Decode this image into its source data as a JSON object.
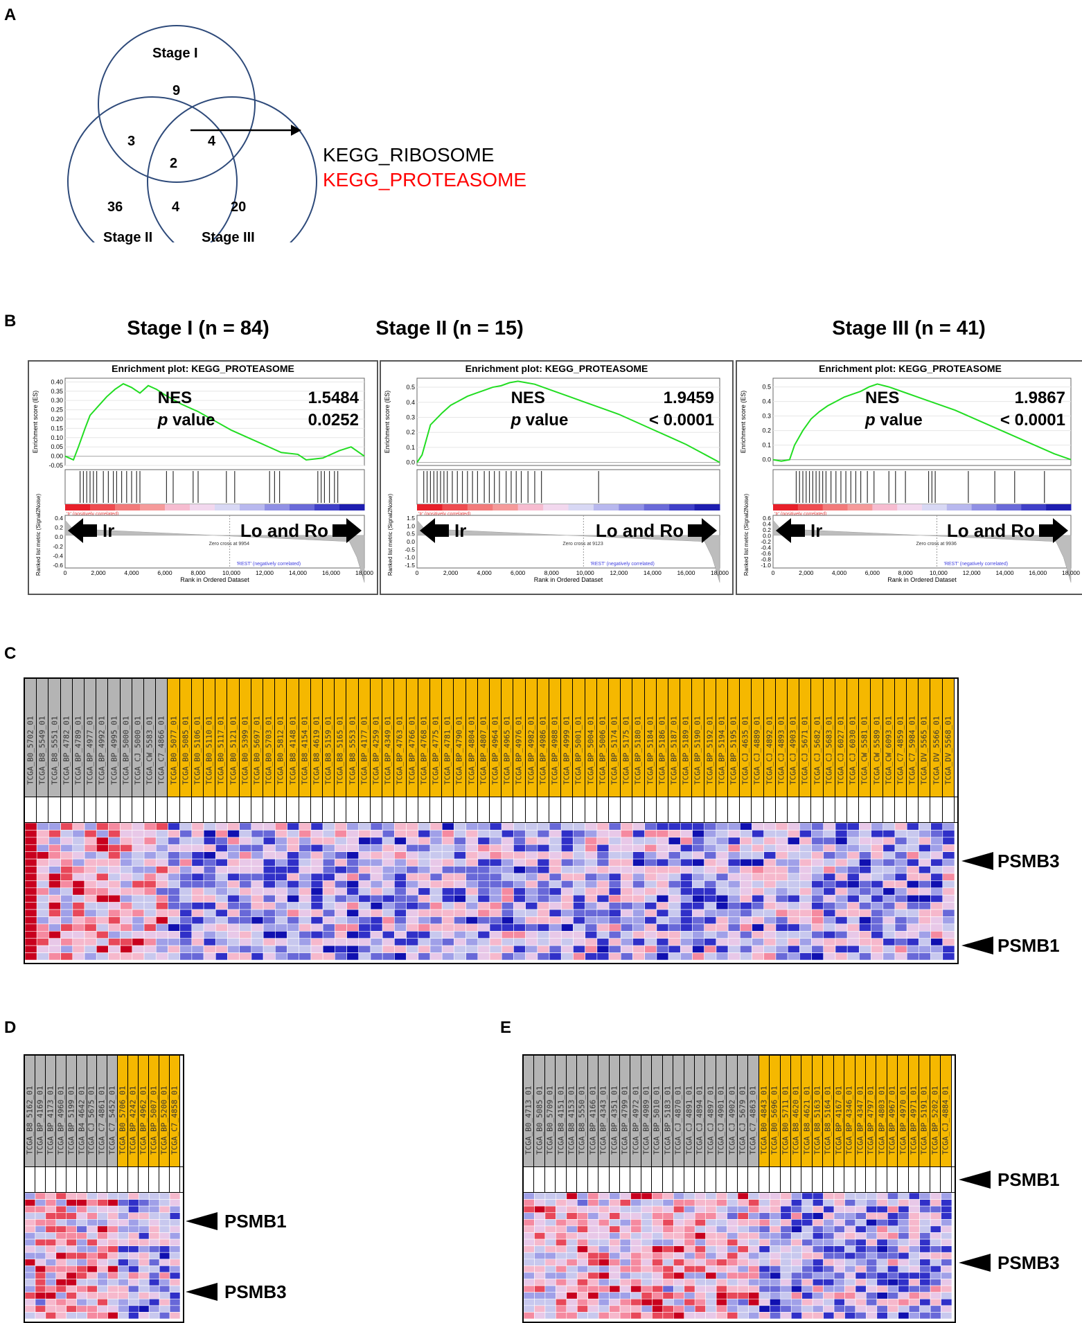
{
  "panels": {
    "A": "A",
    "B": "B",
    "C": "C",
    "D": "D",
    "E": "E"
  },
  "venn": {
    "sets": [
      "Stage I",
      "Stage II",
      "Stage III"
    ],
    "regions": {
      "stage1_only": "9",
      "stage2_only": "36",
      "stage3_only": "20",
      "s1_s2": "3",
      "s1_s3": "4",
      "s2_s3": "4",
      "all": "2"
    },
    "shared_pathways": [
      "KEGG_RIBOSOME",
      "KEGG_PROTEASOME"
    ],
    "colors": {
      "circle": "#2e4a7a",
      "ribosome": "#000000",
      "proteasome": "#ff0000"
    }
  },
  "chart_data": [
    {
      "type": "line",
      "stage_title": "Stage I (n = 84)",
      "title": "Enrichment plot: KEGG_PROTEASOME",
      "nes_label": "NES",
      "nes": "1.5484",
      "p_label_italic": "p",
      "p_label_rest": " value",
      "p": "0.0252",
      "ylabel": "Enrichment score (ES)",
      "ylabel2": "Ranked list metric (Signal2Noise)",
      "xlabel": "Rank in Ordered Dataset",
      "xticks": [
        "0",
        "2,000",
        "4,000",
        "6,000",
        "8,000",
        "10,000",
        "12,000",
        "14,000",
        "16,000",
        "18,000"
      ],
      "yticks": [
        "0.40",
        "0.35",
        "0.30",
        "0.25",
        "0.20",
        "0.15",
        "0.10",
        "0.05",
        "0.00",
        "-0.05"
      ],
      "yticks2": [
        "0.4",
        "0.2",
        "0.0",
        "-0.2",
        "-0.4",
        "-0.6"
      ],
      "ylim": [
        -0.05,
        0.42
      ],
      "xlim": [
        0,
        18000
      ],
      "es_curve": [
        [
          0,
          0.0
        ],
        [
          500,
          -0.02
        ],
        [
          800,
          0.05
        ],
        [
          1200,
          0.15
        ],
        [
          1500,
          0.22
        ],
        [
          2000,
          0.27
        ],
        [
          2500,
          0.32
        ],
        [
          3000,
          0.36
        ],
        [
          3500,
          0.39
        ],
        [
          4000,
          0.37
        ],
        [
          4500,
          0.34
        ],
        [
          5000,
          0.38
        ],
        [
          5500,
          0.36
        ],
        [
          6000,
          0.33
        ],
        [
          7000,
          0.28
        ],
        [
          8000,
          0.24
        ],
        [
          9000,
          0.19
        ],
        [
          10000,
          0.14
        ],
        [
          11000,
          0.1
        ],
        [
          12000,
          0.06
        ],
        [
          13000,
          0.02
        ],
        [
          14000,
          0.01
        ],
        [
          14500,
          -0.02
        ],
        [
          15500,
          -0.01
        ],
        [
          16500,
          0.03
        ],
        [
          17200,
          0.05
        ],
        [
          18000,
          0.0
        ]
      ],
      "hits": [
        900,
        1100,
        1300,
        1500,
        1700,
        1900,
        2300,
        2600,
        2900,
        3100,
        3400,
        3700,
        4000,
        4300,
        4500,
        6100,
        6500,
        7700,
        8000,
        9700,
        10200,
        12300,
        12600,
        12900,
        15200,
        15400,
        15600,
        15900,
        16200,
        16400
      ],
      "zero_cross": "Zero cross at 9954",
      "pos_label": "'Ir' (positively correlated)",
      "neg_label": "'REST' (negatively correlated)",
      "left_group": "Ir",
      "right_group": "Lo and Ro"
    },
    {
      "type": "line",
      "stage_title": "Stage II (n = 15)",
      "title": "Enrichment plot: KEGG_PROTEASOME",
      "nes_label": "NES",
      "nes": "1.9459",
      "p_label_italic": "p",
      "p_label_rest": " value",
      "p": "< 0.0001",
      "ylabel": "Enrichment score (ES)",
      "ylabel2": "Ranked list metric (Signal2Noise)",
      "xlabel": "Rank in Ordered Dataset",
      "xticks": [
        "0",
        "2,000",
        "4,000",
        "6,000",
        "8,000",
        "10,000",
        "12,000",
        "14,000",
        "16,000",
        "18,000"
      ],
      "yticks": [
        "0.5",
        "0.4",
        "0.3",
        "0.2",
        "0.1",
        "0.0"
      ],
      "yticks2": [
        "1.5",
        "1.0",
        "0.5",
        "0.0",
        "-0.5",
        "-1.0",
        "-1.5"
      ],
      "ylim": [
        -0.02,
        0.56
      ],
      "xlim": [
        0,
        18000
      ],
      "es_curve": [
        [
          0,
          0.0
        ],
        [
          300,
          0.05
        ],
        [
          800,
          0.25
        ],
        [
          1500,
          0.33
        ],
        [
          2000,
          0.38
        ],
        [
          2500,
          0.41
        ],
        [
          3000,
          0.44
        ],
        [
          3500,
          0.46
        ],
        [
          4000,
          0.48
        ],
        [
          4500,
          0.5
        ],
        [
          5000,
          0.51
        ],
        [
          5500,
          0.53
        ],
        [
          6000,
          0.54
        ],
        [
          6500,
          0.53
        ],
        [
          7000,
          0.52
        ],
        [
          8000,
          0.48
        ],
        [
          9000,
          0.44
        ],
        [
          10000,
          0.4
        ],
        [
          11000,
          0.36
        ],
        [
          12000,
          0.32
        ],
        [
          13000,
          0.27
        ],
        [
          14000,
          0.22
        ],
        [
          15000,
          0.17
        ],
        [
          16000,
          0.12
        ],
        [
          17000,
          0.06
        ],
        [
          18000,
          0.0
        ]
      ],
      "hits": [
        400,
        600,
        800,
        1000,
        1200,
        1400,
        1600,
        1800,
        2100,
        2400,
        2700,
        3000,
        3300,
        3600,
        4000,
        4300,
        4600,
        4900,
        5300,
        5600,
        5900,
        6200,
        6600,
        7000,
        7400,
        10800
      ],
      "zero_cross": "Zero cross at 9123",
      "pos_label": "'Ir' (positively correlated)",
      "neg_label": "'REST' (negatively correlated)",
      "left_group": "Ir",
      "right_group": "Lo and Ro"
    },
    {
      "type": "line",
      "stage_title": "Stage III (n = 41)",
      "title": "Enrichment plot: KEGG_PROTEASOME",
      "nes_label": "NES",
      "nes": "1.9867",
      "p_label_italic": "p",
      "p_label_rest": " value",
      "p": "< 0.0001",
      "ylabel": "Enrichment score (ES)",
      "ylabel2": "Ranked list metric (Signal2Noise)",
      "xlabel": "Rank in Ordered Dataset",
      "xticks": [
        "0",
        "2,000",
        "4,000",
        "6,000",
        "8,000",
        "10,000",
        "12,000",
        "14,000",
        "16,000",
        "18,000"
      ],
      "yticks": [
        "0.5",
        "0.4",
        "0.3",
        "0.2",
        "0.1",
        "0.0"
      ],
      "yticks2": [
        "0.6",
        "0.4",
        "0.2",
        "0.0",
        "-0.2",
        "-0.4",
        "-0.6",
        "-0.8",
        "-1.0"
      ],
      "ylim": [
        -0.04,
        0.56
      ],
      "xlim": [
        0,
        18000
      ],
      "es_curve": [
        [
          0,
          0.0
        ],
        [
          500,
          -0.01
        ],
        [
          1000,
          0.0
        ],
        [
          1300,
          0.1
        ],
        [
          1800,
          0.2
        ],
        [
          2300,
          0.28
        ],
        [
          2800,
          0.33
        ],
        [
          3300,
          0.37
        ],
        [
          3800,
          0.4
        ],
        [
          4300,
          0.43
        ],
        [
          4800,
          0.45
        ],
        [
          5300,
          0.47
        ],
        [
          5800,
          0.5
        ],
        [
          6300,
          0.52
        ],
        [
          7000,
          0.5
        ],
        [
          8000,
          0.46
        ],
        [
          9000,
          0.42
        ],
        [
          10000,
          0.38
        ],
        [
          11000,
          0.34
        ],
        [
          12000,
          0.29
        ],
        [
          13000,
          0.24
        ],
        [
          14000,
          0.19
        ],
        [
          15000,
          0.14
        ],
        [
          16000,
          0.09
        ],
        [
          17000,
          0.04
        ],
        [
          18000,
          0.0
        ]
      ],
      "hits": [
        1400,
        1600,
        1800,
        2000,
        2200,
        2400,
        2600,
        2800,
        3000,
        3200,
        3500,
        3800,
        4100,
        4400,
        4700,
        5000,
        5300,
        5700,
        6100,
        7000,
        7400,
        8000,
        9400,
        9600,
        9800,
        11800,
        13400,
        14600,
        16400
      ],
      "zero_cross": "Zero cross at 9936",
      "pos_label": "'Ir' (positively correlated)",
      "neg_label": "'REST' (negatively correlated)",
      "left_group": "Ir",
      "right_group": "Lo and Ro"
    }
  ],
  "heatmaps": {
    "C": {
      "gray_samples": [
        "TCGA_B0_5702_01",
        "TCGA_B8_5549_01",
        "TCGA_B8_5551_01",
        "TCGA_BP_4782_01",
        "TCGA_BP_4789_01",
        "TCGA_BP_4977_01",
        "TCGA_BP_4992_01",
        "TCGA_BP_4995_01",
        "TCGA_BP_5000_01",
        "TCGA_CJ_5000_01",
        "TCGA_CW_5583_01",
        "TCGA_C7_4866_01"
      ],
      "yellow_samples": [
        "TCGA_B0_5077_01",
        "TCGA_B0_5085_01",
        "TCGA_B0_5106_01",
        "TCGA_B0_5110_01",
        "TCGA_B0_5117_01",
        "TCGA_B0_5121_01",
        "TCGA_B0_5399_01",
        "TCGA_B0_5697_01",
        "TCGA_B0_5703_01",
        "TCGA_B0_5812_01",
        "TCGA_B8_4148_01",
        "TCGA_B8_4154_01",
        "TCGA_B8_4619_01",
        "TCGA_B8_5159_01",
        "TCGA_B8_5165_01",
        "TCGA_B8_5553_01",
        "TCGA_BP_4177_01",
        "TCGA_BP_4259_01",
        "TCGA_BP_4349_01",
        "TCGA_BP_4763_01",
        "TCGA_BP_4766_01",
        "TCGA_BP_4768_01",
        "TCGA_BP_4775_01",
        "TCGA_BP_4781_01",
        "TCGA_BP_4790_01",
        "TCGA_BP_4804_01",
        "TCGA_BP_4807_01",
        "TCGA_BP_4964_01",
        "TCGA_BP_4965_01",
        "TCGA_BP_4976_01",
        "TCGA_BP_4982_01",
        "TCGA_BP_4986_01",
        "TCGA_BP_4988_01",
        "TCGA_BP_4999_01",
        "TCGA_BP_5001_01",
        "TCGA_BP_5004_01",
        "TCGA_BP_5006_01",
        "TCGA_BP_5174_01",
        "TCGA_BP_5175_01",
        "TCGA_BP_5180_01",
        "TCGA_BP_5184_01",
        "TCGA_BP_5186_01",
        "TCGA_BP_5187_01",
        "TCGA_BP_5189_01",
        "TCGA_BP_5190_01",
        "TCGA_BP_5192_01",
        "TCGA_BP_5194_01",
        "TCGA_BP_5195_01",
        "TCGA_CJ_4635_01",
        "TCGA_CJ_4889_01",
        "TCGA_CJ_4892_01",
        "TCGA_CJ_4893_01",
        "TCGA_CJ_4903_01",
        "TCGA_CJ_5671_01",
        "TCGA_CJ_5682_01",
        "TCGA_CJ_5683_01",
        "TCGA_CJ_6027_01",
        "TCGA_CJ_6030_01",
        "TCGA_CW_5581_01",
        "TCGA_CW_5589_01",
        "TCGA_CW_6093_01",
        "TCGA_C7_4859_01",
        "TCGA_C7_5984_01",
        "TCGA_DV_5565_01",
        "TCGA_DV_5566_01",
        "TCGA_DV_5568_01"
      ],
      "rows": 19,
      "markers": [
        "PSMB3",
        "PSMB1"
      ]
    },
    "D": {
      "gray_samples": [
        "TCGA_B8_5162_01",
        "TCGA_BP_4169_01",
        "TCGA_BP_4173_01",
        "TCGA_BP_4960_01",
        "TCGA_BP_5199_01",
        "TCGA_B4_4642_01",
        "TCGA_CJ_5675_01",
        "TCGA_C7_4861_01",
        "TCGA_C7_5452_01"
      ],
      "yellow_samples": [
        "TCGA_B0_5706_01",
        "TCGA_BP_4242_01",
        "TCGA_BP_4962_01",
        "TCGA_BP_5007_01",
        "TCGA_BP_5200_01",
        "TCGA_C7_4858_01"
      ],
      "rows": 19,
      "markers": [
        "PSMB1",
        "PSMB3"
      ]
    },
    "E": {
      "gray_samples": [
        "TCGA_B0_4713_01",
        "TCGA_B0_5085_01",
        "TCGA_B0_5709_01",
        "TCGA_B8_4151_01",
        "TCGA_B8_4153_01",
        "TCGA_B8_5550_01",
        "TCGA_BP_4166_01",
        "TCGA_BP_4343_01",
        "TCGA_BP_4351_01",
        "TCGA_BP_4799_01",
        "TCGA_BP_4972_01",
        "TCGA_BP_4989_01",
        "TCGA_BP_5010_01",
        "TCGA_BP_5183_01",
        "TCGA_CJ_4870_01",
        "TCGA_CJ_4891_01",
        "TCGA_CJ_4894_01",
        "TCGA_CJ_4897_01",
        "TCGA_CJ_4901_01",
        "TCGA_CJ_4902_01",
        "TCGA_CJ_5679_01",
        "TCGA_C7_4863_01"
      ],
      "yellow_samples": [
        "TCGA_B0_4843_01",
        "TCGA_B0_5696_01",
        "TCGA_B0_5711_01",
        "TCGA_B8_4620_01",
        "TCGA_B8_4621_01",
        "TCGA_B8_5163_01",
        "TCGA_B8_5164_01",
        "TCGA_BP_4167_01",
        "TCGA_BP_4346_01",
        "TCGA_BP_4347_01",
        "TCGA_BP_4797_01",
        "TCGA_BP_4803_01",
        "TCGA_BP_4967_01",
        "TCGA_BP_4970_01",
        "TCGA_BP_4971_01",
        "TCGA_BP_5191_01",
        "TCGA_BP_5202_01",
        "TCGA_CJ_4884_01"
      ],
      "rows": 19,
      "markers": [
        "PSMB1",
        "PSMB3"
      ]
    },
    "palette": [
      "#c8001e",
      "#e8485a",
      "#f58aa0",
      "#f6b8cc",
      "#e8c8e8",
      "#c8c8ee",
      "#a0a0e8",
      "#6868d8",
      "#3030c8",
      "#1010b0"
    ],
    "label_colors": {
      "gray": "#b4b4b4",
      "yellow": "#f5b800"
    }
  }
}
